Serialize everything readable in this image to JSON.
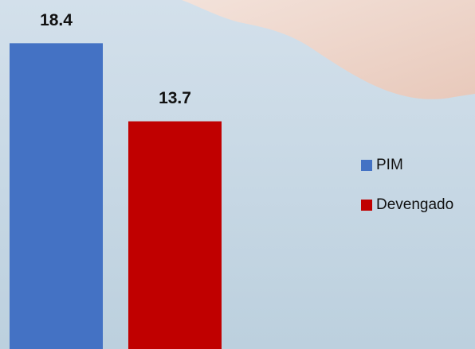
{
  "chart_data": {
    "type": "bar",
    "categories": [
      null
    ],
    "series": [
      {
        "name": "PIM",
        "color": "#4472c4",
        "values": [
          18.4
        ]
      },
      {
        "name": "Devengado",
        "color": "#c00000",
        "values": [
          13.7
        ]
      }
    ],
    "ylim": [
      0,
      21
    ],
    "legend": "right"
  }
}
